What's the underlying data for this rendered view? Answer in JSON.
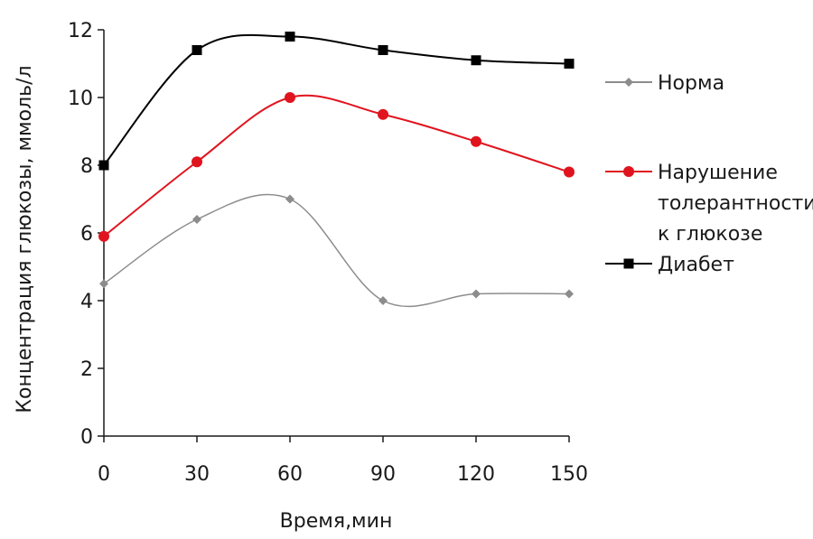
{
  "chart_data": {
    "type": "line",
    "xlabel": "Время,мин",
    "ylabel": "Концентрация глюкозы,  ммоль/л",
    "x": [
      0,
      30,
      60,
      90,
      120,
      150
    ],
    "xlim": [
      0,
      150
    ],
    "ylim": [
      0,
      12
    ],
    "x_ticks": [
      "0",
      "30",
      "60",
      "90",
      "120",
      "150"
    ],
    "y_ticks": [
      "0",
      "2",
      "4",
      "6",
      "8",
      "10",
      "12"
    ],
    "grid": false,
    "smooth": true,
    "legend_position": "right",
    "series": [
      {
        "name": "Норма",
        "label_lines": [
          "Норма"
        ],
        "color": "#8c8c8c",
        "marker": "diamond",
        "values": [
          4.5,
          6.4,
          7.0,
          4.0,
          4.2,
          4.2
        ]
      },
      {
        "name": "Нарушение толерантности к глюкозе",
        "label_lines": [
          "Нарушение",
          "толерантности",
          "к глюкозе"
        ],
        "color": "#e0141e",
        "marker": "circle",
        "values": [
          5.9,
          8.1,
          10.0,
          9.5,
          8.7,
          7.8
        ]
      },
      {
        "name": "Диабет",
        "label_lines": [
          "Диабет"
        ],
        "color": "#000000",
        "marker": "square",
        "values": [
          8.0,
          11.4,
          11.8,
          11.4,
          11.1,
          11.0
        ]
      }
    ]
  }
}
